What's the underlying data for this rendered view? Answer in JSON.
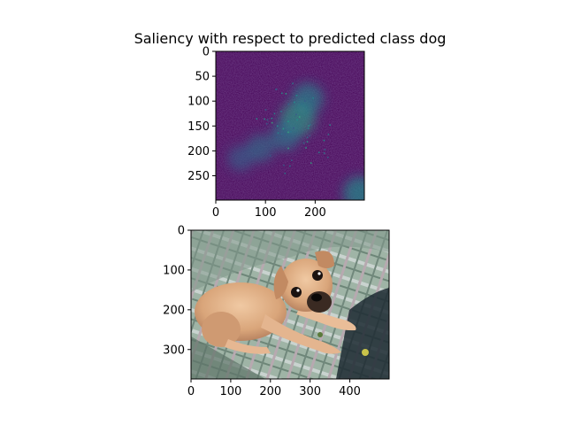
{
  "chart_data": [
    {
      "type": "heatmap",
      "title": "Saliency with respect to predicted class dog",
      "xlim": [
        0,
        299
      ],
      "ylim": [
        299,
        0
      ],
      "xticks": [
        0,
        100,
        200
      ],
      "yticks": [
        0,
        50,
        100,
        150,
        200,
        250
      ],
      "colormap": "viridis",
      "description_values": {
        "background_level": 0.12,
        "hotspots": [
          {
            "x": 165,
            "y": 135,
            "level": 0.55
          },
          {
            "x": 185,
            "y": 95,
            "level": 0.45
          },
          {
            "x": 90,
            "y": 195,
            "level": 0.35
          },
          {
            "x": 140,
            "y": 170,
            "level": 0.4
          },
          {
            "x": 50,
            "y": 215,
            "level": 0.3
          },
          {
            "x": 290,
            "y": 285,
            "level": 0.5
          }
        ]
      }
    },
    {
      "type": "image",
      "subject": "small tan dog lying on a plaid couch",
      "xlim": [
        0,
        499
      ],
      "ylim": [
        374,
        0
      ],
      "xticks": [
        0,
        100,
        200,
        300,
        400
      ],
      "yticks": [
        0,
        100,
        200,
        300
      ]
    }
  ],
  "colors": {
    "heatmap_bg": "#440154",
    "heatmap_mid": "#3b528b",
    "heatmap_hi": "#21918c",
    "couch_base": "#8fa89a",
    "dog_fur": "#d9a57a"
  }
}
